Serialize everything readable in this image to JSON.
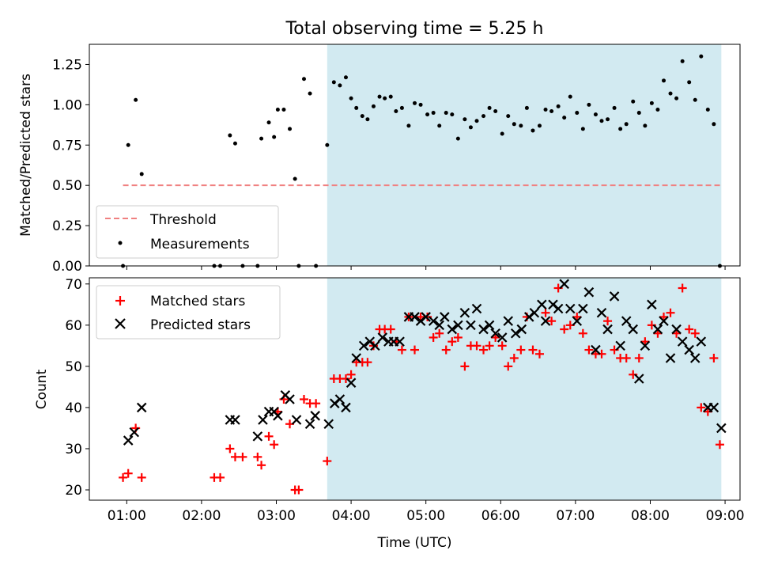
{
  "chart_data": [
    {
      "type": "scatter",
      "title": "Total observing time = 5.25 h",
      "xlabel": "",
      "ylabel": "Matched/Predicted stars",
      "ylim": [
        0,
        1.375
      ],
      "yticks": [
        "0.00",
        "0.25",
        "0.50",
        "0.75",
        "1.00",
        "1.25"
      ],
      "shaded_span": {
        "from": 3.68,
        "to": 8.95,
        "color": "#add8e6"
      },
      "threshold": {
        "name": "Threshold",
        "value": 0.5,
        "from": 0.95,
        "to": 8.95,
        "color": "#f08080"
      },
      "legend": {
        "placement": "lower-left",
        "entries": [
          "Threshold",
          "Measurements"
        ]
      },
      "series": [
        {
          "name": "Measurements",
          "color": "#000000",
          "x": [
            0.95,
            1.02,
            1.12,
            1.2,
            2.17,
            2.25,
            2.38,
            2.45,
            2.55,
            2.75,
            2.8,
            2.9,
            2.97,
            3.02,
            3.1,
            3.18,
            3.25,
            3.3,
            3.37,
            3.45,
            3.53,
            3.68,
            3.77,
            3.85,
            3.93,
            4.0,
            4.07,
            4.15,
            4.22,
            4.3,
            4.38,
            4.45,
            4.53,
            4.6,
            4.68,
            4.77,
            4.85,
            4.93,
            5.02,
            5.1,
            5.18,
            5.27,
            5.35,
            5.43,
            5.52,
            5.6,
            5.68,
            5.77,
            5.85,
            5.93,
            6.02,
            6.1,
            6.18,
            6.27,
            6.35,
            6.43,
            6.52,
            6.6,
            6.68,
            6.77,
            6.85,
            6.93,
            7.02,
            7.1,
            7.18,
            7.27,
            7.35,
            7.43,
            7.52,
            7.6,
            7.68,
            7.77,
            7.85,
            7.93,
            8.02,
            8.1,
            8.18,
            8.27,
            8.35,
            8.43,
            8.52,
            8.6,
            8.68,
            8.77,
            8.85,
            8.93
          ],
          "y": [
            0.0,
            0.75,
            1.03,
            0.57,
            0.0,
            0.0,
            0.81,
            0.76,
            0.0,
            0.0,
            0.79,
            0.89,
            0.8,
            0.97,
            0.97,
            0.85,
            0.54,
            0.0,
            1.16,
            1.07,
            0.0,
            0.75,
            1.14,
            1.12,
            1.17,
            1.04,
            0.98,
            0.93,
            0.91,
            0.99,
            1.05,
            1.04,
            1.05,
            0.96,
            0.98,
            0.87,
            1.01,
            1.0,
            0.94,
            0.95,
            0.87,
            0.95,
            0.94,
            0.79,
            0.91,
            0.86,
            0.9,
            0.93,
            0.98,
            0.96,
            0.82,
            0.93,
            0.88,
            0.87,
            0.98,
            0.84,
            0.87,
            0.97,
            0.96,
            0.99,
            0.92,
            1.05,
            0.95,
            0.85,
            1.0,
            0.94,
            0.9,
            0.91,
            0.98,
            0.85,
            0.88,
            1.02,
            0.95,
            0.87,
            1.01,
            0.97,
            1.15,
            1.07,
            1.04,
            1.27,
            1.14,
            1.03,
            1.3,
            0.97,
            0.88,
            0.0
          ]
        }
      ]
    },
    {
      "type": "scatter",
      "title": "",
      "xlabel": "Time (UTC)",
      "ylabel": "Count",
      "ylim": [
        17.5,
        71.5
      ],
      "yticks": [
        "20",
        "30",
        "40",
        "50",
        "60",
        "70"
      ],
      "xlim": [
        0.5,
        9.2
      ],
      "xticks": [
        {
          "value": 1,
          "label": "01:00"
        },
        {
          "value": 2,
          "label": "02:00"
        },
        {
          "value": 3,
          "label": "03:00"
        },
        {
          "value": 4,
          "label": "04:00"
        },
        {
          "value": 5,
          "label": "05:00"
        },
        {
          "value": 6,
          "label": "06:00"
        },
        {
          "value": 7,
          "label": "07:00"
        },
        {
          "value": 8,
          "label": "08:00"
        },
        {
          "value": 9,
          "label": "09:00"
        }
      ],
      "shaded_span": {
        "from": 3.68,
        "to": 8.95,
        "color": "#add8e6"
      },
      "legend": {
        "placement": "top-left",
        "entries": [
          "Matched stars",
          "Predicted stars"
        ]
      },
      "series": [
        {
          "name": "Matched stars",
          "color": "#ff0000",
          "x": [
            0.95,
            1.02,
            1.12,
            1.2,
            2.17,
            2.25,
            2.38,
            2.45,
            2.55,
            2.75,
            2.8,
            2.9,
            2.97,
            3.02,
            3.1,
            3.18,
            3.25,
            3.3,
            3.37,
            3.45,
            3.53,
            3.68,
            3.77,
            3.85,
            3.93,
            4.0,
            4.07,
            4.15,
            4.22,
            4.3,
            4.38,
            4.45,
            4.53,
            4.6,
            4.68,
            4.77,
            4.85,
            4.93,
            5.02,
            5.1,
            5.18,
            5.27,
            5.35,
            5.43,
            5.52,
            5.6,
            5.68,
            5.77,
            5.85,
            5.93,
            6.02,
            6.1,
            6.18,
            6.27,
            6.35,
            6.43,
            6.52,
            6.6,
            6.68,
            6.77,
            6.85,
            6.93,
            7.02,
            7.1,
            7.18,
            7.27,
            7.35,
            7.43,
            7.52,
            7.6,
            7.68,
            7.77,
            7.85,
            7.93,
            8.02,
            8.1,
            8.18,
            8.27,
            8.35,
            8.43,
            8.52,
            8.6,
            8.68,
            8.77,
            8.85,
            8.93
          ],
          "y": [
            23,
            24,
            35,
            23,
            23,
            23,
            30,
            28,
            28,
            28,
            26,
            33,
            31,
            39,
            42,
            36,
            20,
            20,
            42,
            41,
            41,
            27,
            47,
            47,
            47,
            48,
            51,
            51,
            51,
            55,
            59,
            59,
            59,
            56,
            54,
            62,
            54,
            62,
            62,
            57,
            58,
            54,
            56,
            57,
            50,
            55,
            55,
            54,
            55,
            57,
            55,
            50,
            52,
            54,
            62,
            54,
            53,
            63,
            61,
            69,
            59,
            60,
            62,
            58,
            54,
            53,
            53,
            61,
            54,
            52,
            52,
            48,
            52,
            56,
            60,
            58,
            62,
            63,
            58,
            69,
            59,
            58,
            40,
            39,
            52,
            31
          ]
        },
        {
          "name": "Predicted stars",
          "color": "#000000",
          "x": [
            1.02,
            1.1,
            1.2,
            2.38,
            2.45,
            2.75,
            2.82,
            2.9,
            2.97,
            3.02,
            3.12,
            3.18,
            3.27,
            3.45,
            3.52,
            3.7,
            3.78,
            3.85,
            3.93,
            4.0,
            4.07,
            4.17,
            4.25,
            4.32,
            4.42,
            4.5,
            4.57,
            4.65,
            4.77,
            4.85,
            4.93,
            5.0,
            5.1,
            5.18,
            5.25,
            5.35,
            5.43,
            5.52,
            5.6,
            5.68,
            5.77,
            5.85,
            5.93,
            6.02,
            6.1,
            6.2,
            6.28,
            6.38,
            6.45,
            6.55,
            6.6,
            6.7,
            6.77,
            6.85,
            6.93,
            7.02,
            7.1,
            7.18,
            7.27,
            7.35,
            7.43,
            7.52,
            7.6,
            7.68,
            7.77,
            7.85,
            7.93,
            8.02,
            8.1,
            8.18,
            8.27,
            8.35,
            8.43,
            8.52,
            8.6,
            8.68,
            8.77,
            8.85,
            8.95
          ],
          "y": [
            32,
            34,
            40,
            37,
            37,
            33,
            37,
            39,
            39,
            38,
            43,
            42,
            37,
            36,
            38,
            36,
            41,
            42,
            40,
            46,
            52,
            55,
            56,
            55,
            57,
            56,
            56,
            56,
            62,
            62,
            61,
            62,
            61,
            60,
            62,
            59,
            60,
            63,
            60,
            64,
            59,
            60,
            58,
            57,
            61,
            58,
            59,
            62,
            63,
            65,
            61,
            65,
            64,
            70,
            64,
            61,
            64,
            68,
            54,
            63,
            59,
            67,
            55,
            61,
            59,
            47,
            55,
            65,
            59,
            61,
            52,
            59,
            56,
            54,
            52,
            56,
            40,
            40,
            35
          ]
        }
      ]
    }
  ]
}
